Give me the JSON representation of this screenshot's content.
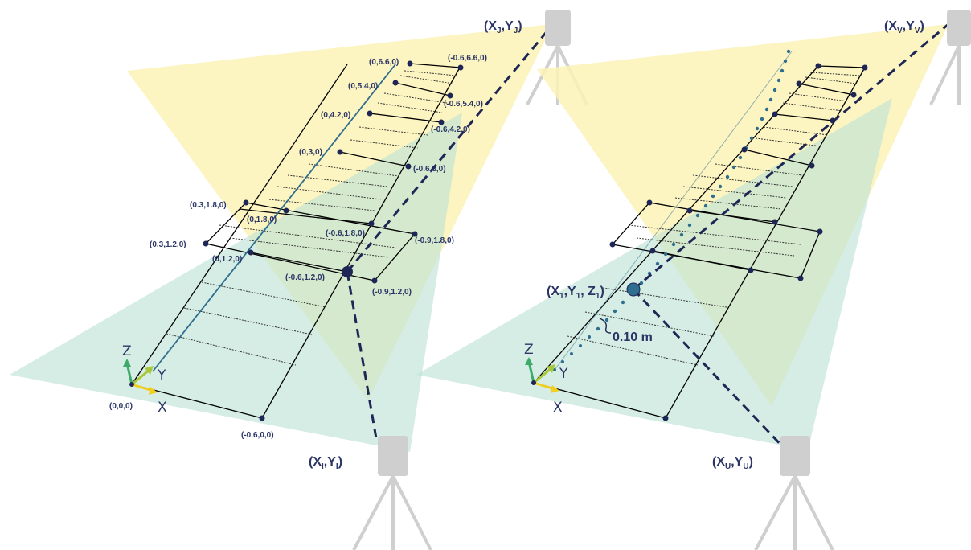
{
  "left_panel": {
    "point_labels": [
      "(0,6.6,0)",
      "(-0.6,6.6,0)",
      "(0,5.4,0)",
      "(-0.6,5.4,0)",
      "(0,4.2,0)",
      "(-0.6,4.2,0)",
      "(0,3,0)",
      "(-0.6,3,0)",
      "(0.3,1.8,0)",
      "(0,1.8,0)",
      "(-0.6,1.8,0)",
      "(-0.9,1.8,0)",
      "(0.3,1.2,0)",
      "(0,1.2,0)",
      "(-0.6,1.2,0)",
      "(-0.9,1.2,0)",
      "(0,0,0)",
      "(-0.6,0,0)"
    ],
    "camera_top": {
      "base": "(X",
      "sub": "J",
      "mid": ",Y",
      "sub2": "J",
      "end": ")"
    },
    "camera_bottom": {
      "base": "(X",
      "sub": "I",
      "mid": ",Y",
      "sub2": "I",
      "end": ")"
    },
    "axes": {
      "z": "Z",
      "y": "Y",
      "x": "X"
    }
  },
  "right_panel": {
    "camera_top": {
      "base": "(X",
      "sub": "V",
      "mid": ",Y",
      "sub2": "V",
      "end": ")"
    },
    "camera_bottom": {
      "base": "(X",
      "sub": "U",
      "mid": ",Y",
      "sub2": "U",
      "end": ")"
    },
    "target": {
      "base": "(X",
      "sub": "1",
      "mid": ",Y",
      "sub2": "1",
      "mid2": ", Z",
      "sub3": "1",
      "end": ")"
    },
    "spacing": "0.10 m",
    "axes": {
      "z": "Z",
      "y": "Y",
      "x": "X"
    }
  },
  "colors": {
    "yellow_fov": "#fbf2b6",
    "teal_fov": "#bfe4d6",
    "overlap": "#d6e8b4",
    "node": "#1e2655",
    "accent": "#2e6e8e",
    "tripod": "#cfcfcf"
  }
}
